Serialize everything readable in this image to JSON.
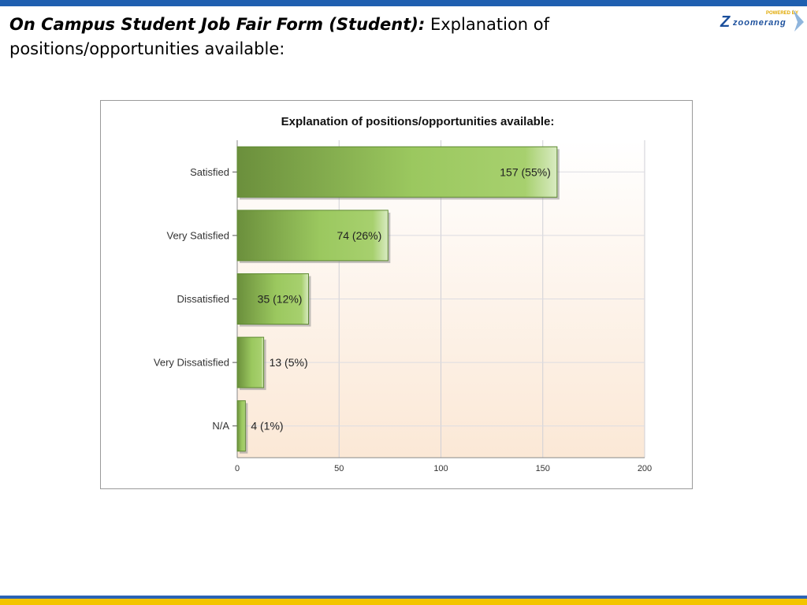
{
  "slide": {
    "title_bold": "On Campus Student Job Fair Form (Student):",
    "title_rest": "Explanation of positions/opportunities available:"
  },
  "logo": {
    "text": "zoomerang",
    "tagline": "POWERED BY",
    "colors": {
      "mark": "#1b4f9c",
      "accent": "#f0c000"
    }
  },
  "colors": {
    "top_bar": "#1f5fb0",
    "bottom_bar_blue": "#2a63b5",
    "bottom_bar_yellow": "#f3c400",
    "bar_dark": "#6b8f3c",
    "bar_mid": "#9bc85f",
    "bar_light": "#d9ebc2",
    "plot_bg_top": "#ffffff",
    "plot_bg_bottom": "#fbe8d6"
  },
  "chart_data": {
    "type": "bar",
    "orientation": "horizontal",
    "title": "Explanation of positions/opportunities available:",
    "categories": [
      "Satisfied",
      "Very Satisfied",
      "Dissatisfied",
      "Very Dissatisfied",
      "N/A"
    ],
    "values": [
      157,
      74,
      35,
      13,
      4
    ],
    "data_labels": [
      "157 (55%)",
      "74 (26%)",
      "35 (12%)",
      "13 (5%)",
      "4 (1%)"
    ],
    "xlim": [
      0,
      200
    ],
    "xticks": [
      0,
      50,
      100,
      150,
      200
    ],
    "grid": true,
    "legend": "none"
  }
}
